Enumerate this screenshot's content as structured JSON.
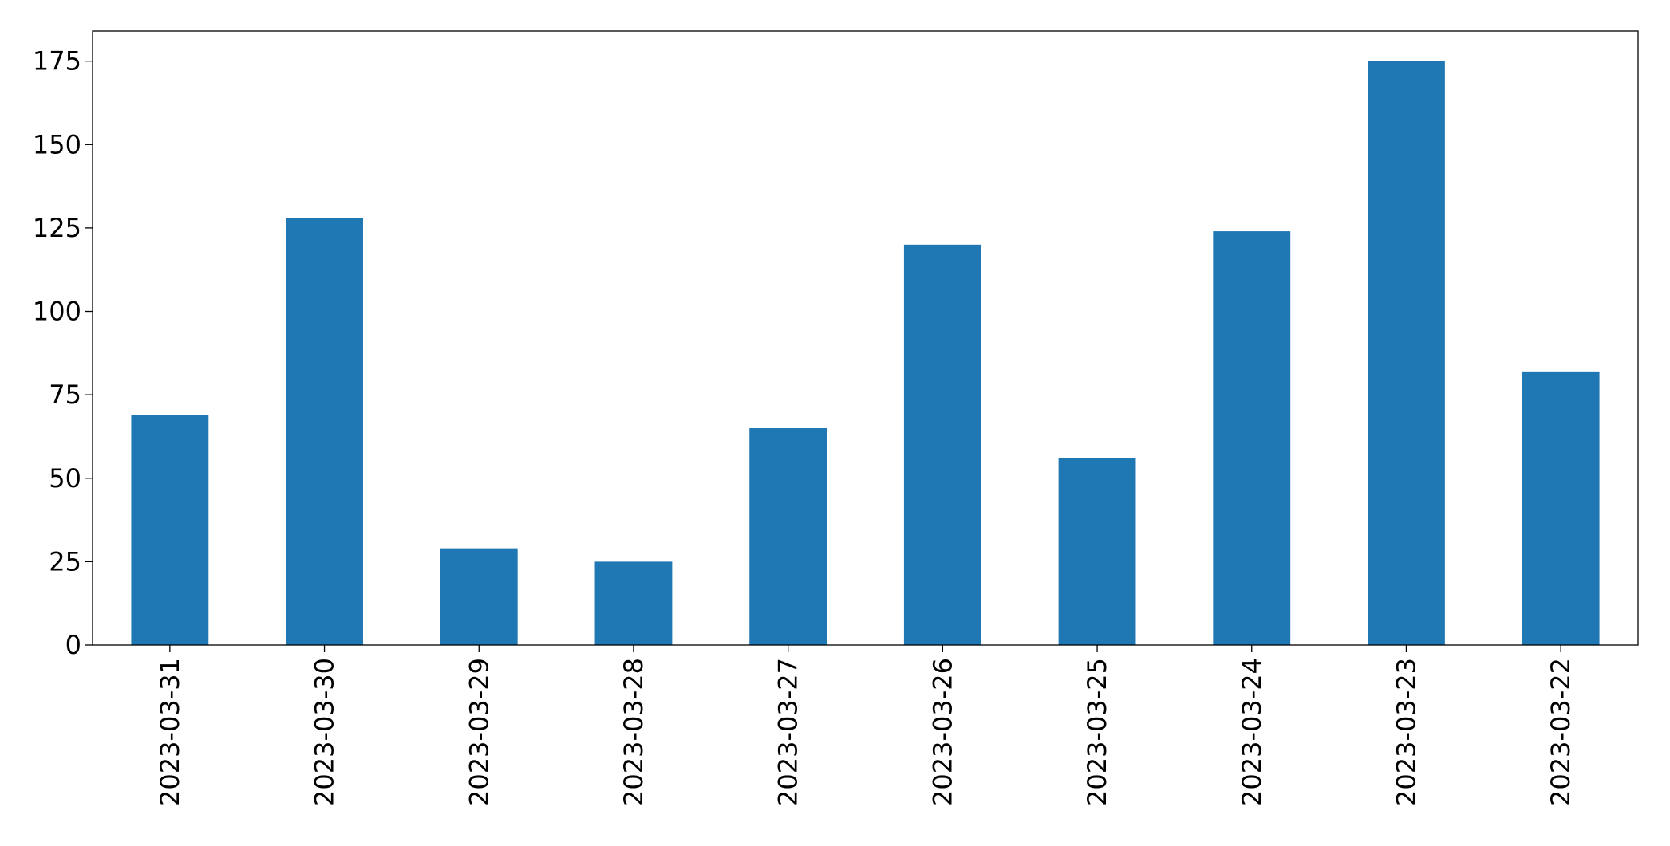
{
  "chart_data": {
    "type": "bar",
    "categories": [
      "2023-03-31",
      "2023-03-30",
      "2023-03-29",
      "2023-03-28",
      "2023-03-27",
      "2023-03-26",
      "2023-03-25",
      "2023-03-24",
      "2023-03-23",
      "2023-03-22"
    ],
    "values": [
      69,
      128,
      29,
      25,
      65,
      120,
      56,
      124,
      175,
      82
    ],
    "color": "#1f77b4",
    "ylim": [
      0,
      184
    ],
    "yticks": [
      0,
      25,
      50,
      75,
      100,
      125,
      150,
      175
    ],
    "grid": false
  }
}
